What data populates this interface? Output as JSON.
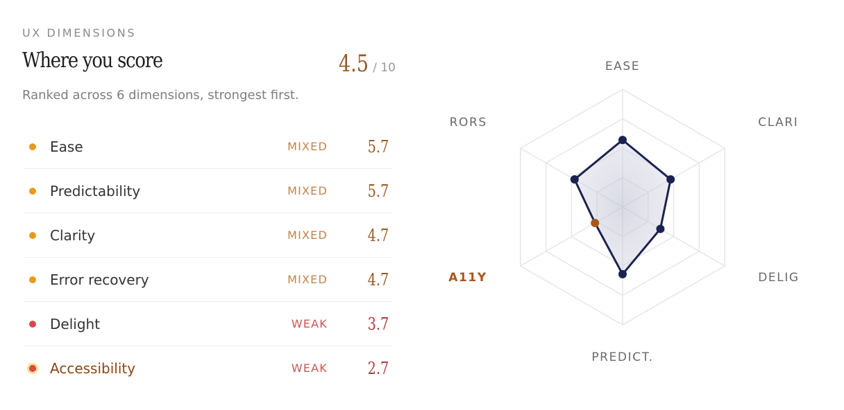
{
  "header": {
    "eyebrow": "UX DIMENSIONS",
    "title": "Where you score",
    "overall_value": "4.5",
    "overall_max": "/ 10",
    "subtitle": "Ranked across 6 dimensions, strongest first."
  },
  "colors": {
    "mixed_dot": "#e89a1c",
    "weak_dot": "#d9474f",
    "mixed_text": "#c0844f",
    "weak_text": "#c95656",
    "mixed_score": "#9a5a22",
    "weak_score": "#b03a3a",
    "active_text": "#8a4614",
    "radar_line": "#1a2350",
    "radar_point_active": "#a8561c",
    "grid": "#e6e6e6"
  },
  "dimensions": [
    {
      "name": "Ease",
      "rating": "MIXED",
      "score": "5.7",
      "level": "mixed",
      "active": false
    },
    {
      "name": "Predictability",
      "rating": "MIXED",
      "score": "5.7",
      "level": "mixed",
      "active": false
    },
    {
      "name": "Clarity",
      "rating": "MIXED",
      "score": "4.7",
      "level": "mixed",
      "active": false
    },
    {
      "name": "Error recovery",
      "rating": "MIXED",
      "score": "4.7",
      "level": "mixed",
      "active": false
    },
    {
      "name": "Delight",
      "rating": "WEAK",
      "score": "3.7",
      "level": "weak",
      "active": false
    },
    {
      "name": "Accessibility",
      "rating": "WEAK",
      "score": "2.7",
      "level": "weak",
      "active": true
    }
  ],
  "chart_data": {
    "type": "radar",
    "axis_labels": [
      "EASE",
      "CLARI",
      "DELIG",
      "PREDICT.",
      "A11Y",
      "RORS"
    ],
    "values": [
      5.7,
      4.7,
      3.7,
      5.7,
      2.7,
      4.7
    ],
    "active_index": 4,
    "range": [
      0,
      10
    ],
    "grid_levels": 4
  }
}
